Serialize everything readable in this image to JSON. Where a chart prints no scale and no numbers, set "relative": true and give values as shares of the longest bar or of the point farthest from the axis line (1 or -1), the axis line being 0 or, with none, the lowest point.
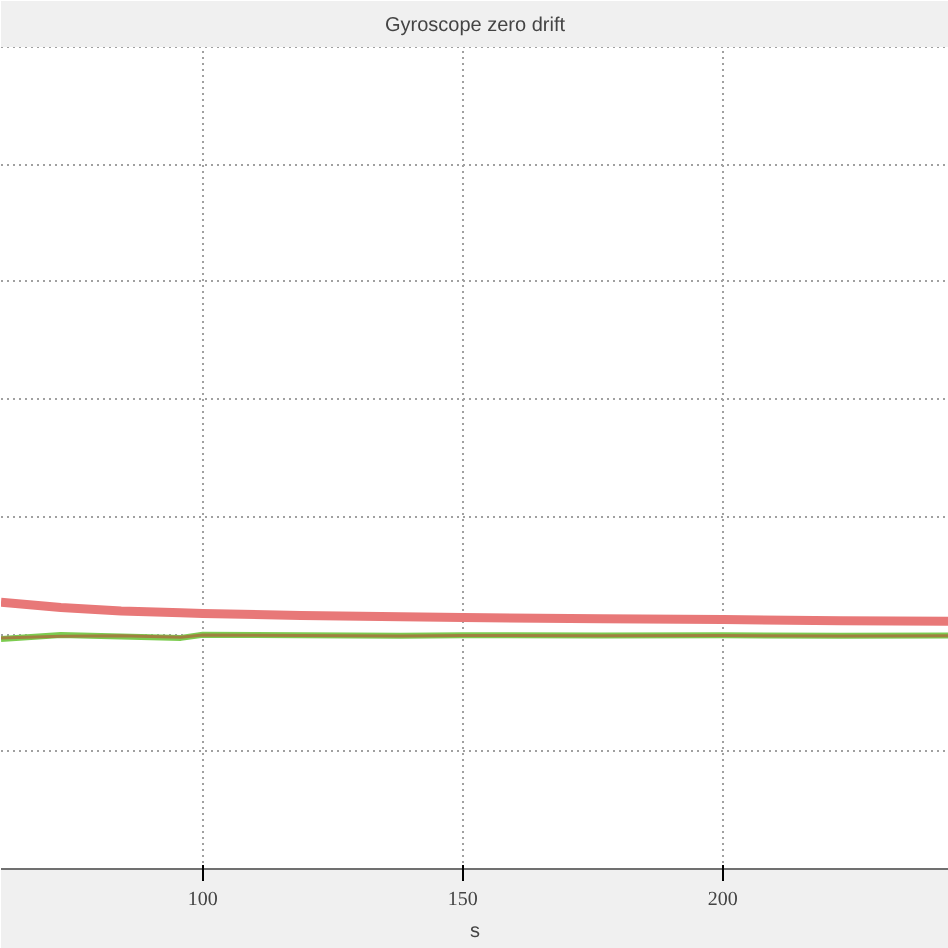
{
  "chart_data": {
    "type": "line",
    "title": "Gyroscope zero drift",
    "xlabel": "s",
    "relative": true,
    "x": [
      61.2,
      72.7,
      84.3,
      95.8,
      100,
      118.9,
      138.1,
      150,
      176.6,
      200,
      222.7,
      243.5
    ],
    "xlim": [
      61.2,
      243.5
    ],
    "xticks": [
      100,
      150,
      200
    ],
    "grid": true,
    "line_style": "solid",
    "series": [
      {
        "color": "#e87878",
        "values": [
          1,
          0.98,
          0.967,
          0.96,
          0.957,
          0.95,
          0.945,
          0.942,
          0.938,
          0.935,
          0.93,
          0.928
        ]
      },
      {
        "color": "#7ccc50",
        "values": [
          0.862,
          0.877,
          0.871,
          0.866,
          0.878,
          0.876,
          0.874,
          0.876,
          0.875,
          0.876,
          0.874,
          0.875
        ]
      },
      {
        "color": "#a08040",
        "values": [
          0.866,
          0.872,
          0.874,
          0.868,
          0.877,
          0.875,
          0.873,
          0.875,
          0.874,
          0.875,
          0.873,
          0.874
        ]
      }
    ]
  }
}
